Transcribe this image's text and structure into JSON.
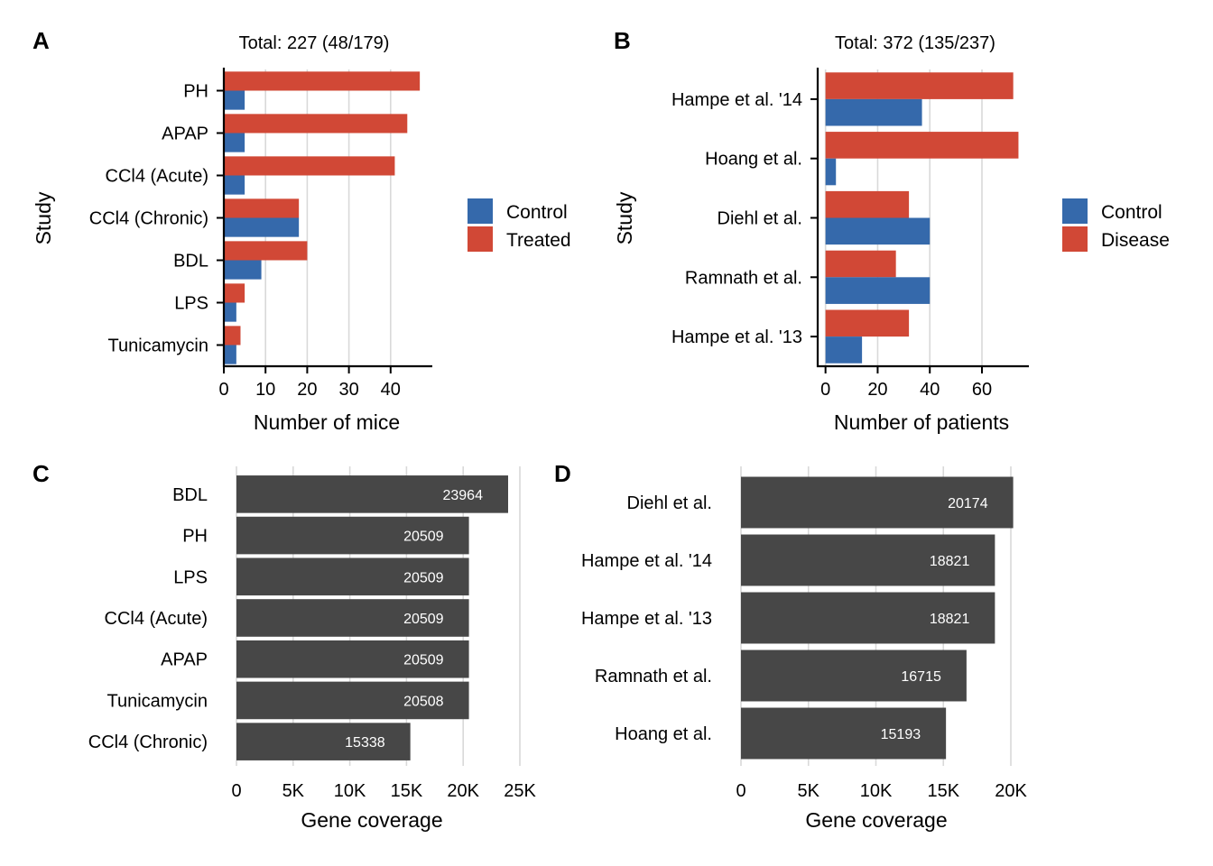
{
  "colors": {
    "control": "#3569ab",
    "treated": "#d14836",
    "coverage_bar": "#474747",
    "grid": "#d9d9d9"
  },
  "panels": {
    "A": {
      "letter": "A",
      "subtitle": "Total: 227 (48/179)",
      "xlabel": "Number of mice",
      "ylabel": "Study",
      "legend": [
        "Control",
        "Treated"
      ]
    },
    "B": {
      "letter": "B",
      "subtitle": "Total: 372 (135/237)",
      "xlabel": "Number of patients",
      "ylabel": "Study",
      "legend": [
        "Control",
        "Disease"
      ]
    },
    "C": {
      "letter": "C",
      "xlabel": "Gene coverage"
    },
    "D": {
      "letter": "D",
      "xlabel": "Gene coverage"
    }
  },
  "chart_data": [
    {
      "panel": "A",
      "type": "bar",
      "orientation": "horizontal",
      "title": "Total: 227 (48/179)",
      "xlabel": "Number of mice",
      "ylabel": "Study",
      "categories": [
        "PH",
        "APAP",
        "CCl4 (Acute)",
        "CCl4 (Chronic)",
        "BDL",
        "LPS",
        "Tunicamycin"
      ],
      "series": [
        {
          "name": "Treated",
          "values": [
            47,
            44,
            41,
            18,
            20,
            5,
            4
          ]
        },
        {
          "name": "Control",
          "values": [
            5,
            5,
            5,
            18,
            9,
            3,
            3
          ]
        }
      ],
      "xlim": [
        0,
        50
      ],
      "xticks": [
        "0",
        "10",
        "20",
        "30",
        "40"
      ],
      "grid": "vertical",
      "legend_position": "right"
    },
    {
      "panel": "B",
      "type": "bar",
      "orientation": "horizontal",
      "title": "Total: 372 (135/237)",
      "xlabel": "Number of patients",
      "ylabel": "Study",
      "categories": [
        "Hampe et al. '14",
        "Hoang et al.",
        "Diehl et al.",
        "Ramnath et al.",
        "Hampe et al. '13"
      ],
      "series": [
        {
          "name": "Disease",
          "values": [
            72,
            74,
            32,
            27,
            32
          ]
        },
        {
          "name": "Control",
          "values": [
            37,
            4,
            40,
            40,
            14
          ]
        }
      ],
      "xlim": [
        -3,
        78
      ],
      "xticks": [
        "0",
        "20",
        "40",
        "60"
      ],
      "grid": "vertical",
      "legend_position": "right"
    },
    {
      "panel": "C",
      "type": "bar",
      "orientation": "horizontal",
      "xlabel": "Gene coverage",
      "categories": [
        "BDL",
        "PH",
        "LPS",
        "CCl4 (Acute)",
        "APAP",
        "Tunicamycin",
        "CCl4 (Chronic)"
      ],
      "values": [
        23964,
        20509,
        20509,
        20509,
        20509,
        20508,
        15338
      ],
      "data_labels": [
        "23964",
        "20509",
        "20509",
        "20509",
        "20509",
        "20508",
        "15338"
      ],
      "xlim": [
        0,
        25000
      ],
      "xticks": [
        "0",
        "5K",
        "10K",
        "15K",
        "20K",
        "25K"
      ],
      "grid": "vertical"
    },
    {
      "panel": "D",
      "type": "bar",
      "orientation": "horizontal",
      "xlabel": "Gene coverage",
      "categories": [
        "Diehl et al.",
        "Hampe et al. '14",
        "Hampe et al. '13",
        "Ramnath et al.",
        "Hoang et al."
      ],
      "values": [
        20174,
        18821,
        18821,
        16715,
        15193
      ],
      "data_labels": [
        "20174",
        "18821",
        "18821",
        "16715",
        "15193"
      ],
      "xlim": [
        0,
        20000
      ],
      "xticks": [
        "0",
        "5K",
        "10K",
        "15K",
        "20K"
      ],
      "grid": "vertical"
    }
  ]
}
